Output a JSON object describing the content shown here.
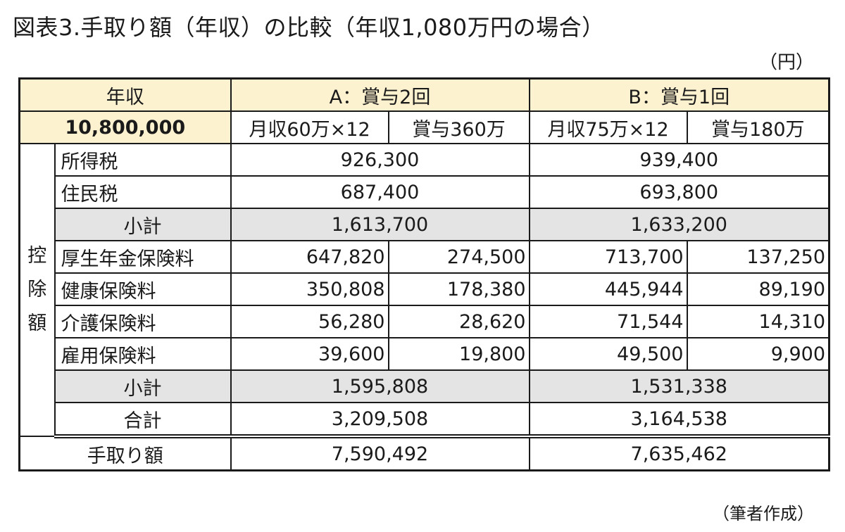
{
  "title": "図表3.手取り額（年収）の比較（年収1,080万円の場合）",
  "unit": "（円）",
  "source": "（筆者作成）",
  "header": {
    "income_label": "年収",
    "income_value": "10,800,000",
    "a_label": "A：賞与2回",
    "b_label": "B：賞与1回",
    "a_monthly": "月収60万×12",
    "a_bonus": "賞与360万",
    "b_monthly": "月収75万×12",
    "b_bonus": "賞与180万"
  },
  "deductions_label": [
    "控",
    "除",
    "額"
  ],
  "taxes": [
    {
      "label": "所得税",
      "a": "926,300",
      "b": "939,400"
    },
    {
      "label": "住民税",
      "a": "687,400",
      "b": "693,800"
    }
  ],
  "tax_subtotal": {
    "label": "小計",
    "a": "1,613,700",
    "b": "1,633,200"
  },
  "insurance": [
    {
      "label": "厚生年金保険料",
      "a_monthly": "647,820",
      "a_bonus": "274,500",
      "b_monthly": "713,700",
      "b_bonus": "137,250"
    },
    {
      "label": "健康保険料",
      "a_monthly": "350,808",
      "a_bonus": "178,380",
      "b_monthly": "445,944",
      "b_bonus": "89,190"
    },
    {
      "label": "介護保険料",
      "a_monthly": "56,280",
      "a_bonus": "28,620",
      "b_monthly": "71,544",
      "b_bonus": "14,310"
    },
    {
      "label": "雇用保険料",
      "a_monthly": "39,600",
      "a_bonus": "19,800",
      "b_monthly": "49,500",
      "b_bonus": "9,900"
    }
  ],
  "insurance_subtotal": {
    "label": "小計",
    "a": "1,595,808",
    "b": "1,531,338"
  },
  "total": {
    "label": "合計",
    "a": "3,209,508",
    "b": "3,164,538"
  },
  "take_home": {
    "label": "手取り額",
    "a": "7,590,492",
    "b": "7,635,462"
  }
}
